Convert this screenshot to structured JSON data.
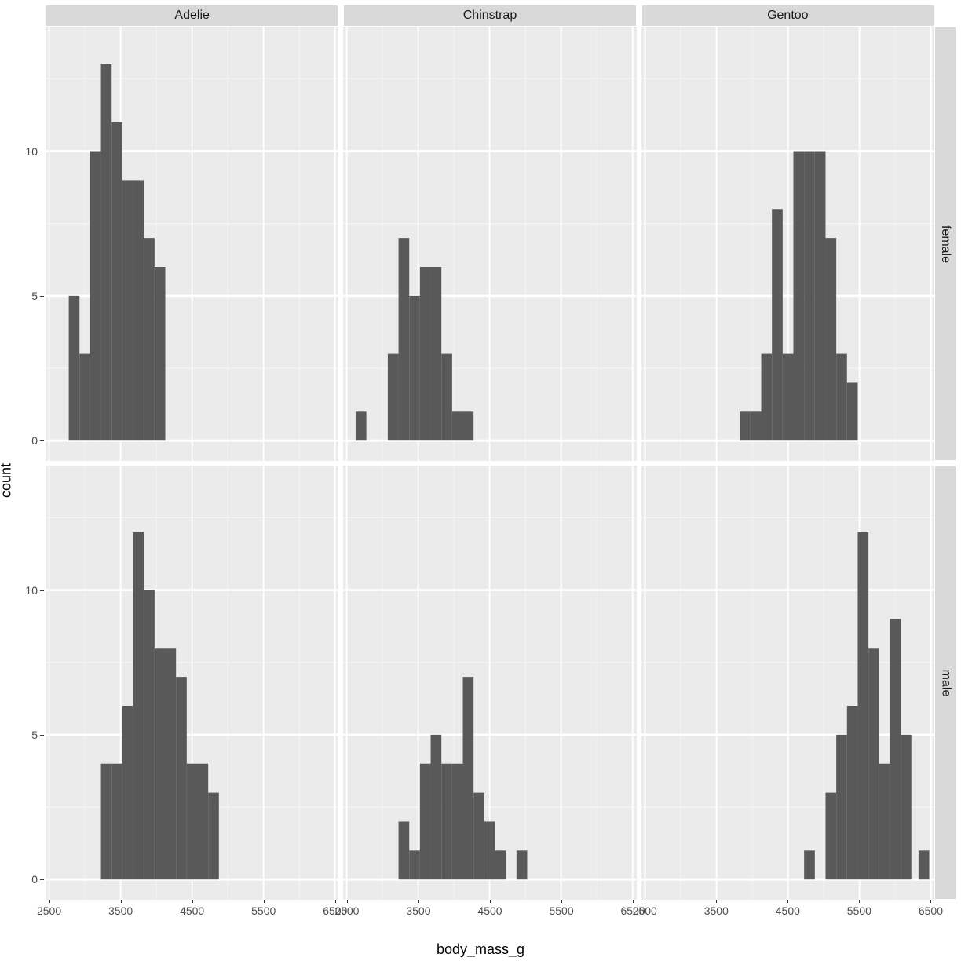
{
  "chart": {
    "type": "faceted-histogram",
    "xlabel": "body_mass_g",
    "ylabel": "count",
    "background_color": "#ffffff",
    "panel_background": "#ebebeb",
    "strip_background": "#d9d9d9",
    "bar_fill": "#595959",
    "major_grid_color": "#ffffff",
    "minor_grid_color": "#f5f5f5",
    "strip_text_color": "#1a1a1a",
    "tick_text_color": "#4d4d4d",
    "axis_title_fontsize": 18,
    "strip_fontsize": 16,
    "tick_fontsize": 14,
    "col_facets": [
      "Adelie",
      "Chinstrap",
      "Gentoo"
    ],
    "row_facets": [
      "female",
      "male"
    ],
    "xlim": [
      2450,
      6550
    ],
    "x_major_ticks": [
      2500,
      3500,
      4500,
      5500,
      6500
    ],
    "x_minor_ticks": [
      3000,
      4000,
      5000,
      6000
    ],
    "ylim": [
      -0.7,
      14.3
    ],
    "y_major_ticks": [
      0,
      5,
      10
    ],
    "y_minor_ticks": [
      2.5,
      7.5,
      12.5
    ],
    "bin_width": 150,
    "panels": {
      "Adelie_female": {
        "bins": [
          {
            "x": 2850,
            "count": 5
          },
          {
            "x": 3000,
            "count": 3
          },
          {
            "x": 3150,
            "count": 10
          },
          {
            "x": 3300,
            "count": 13
          },
          {
            "x": 3450,
            "count": 11
          },
          {
            "x": 3600,
            "count": 9
          },
          {
            "x": 3750,
            "count": 9
          },
          {
            "x": 3900,
            "count": 7
          },
          {
            "x": 4050,
            "count": 6
          }
        ]
      },
      "Chinstrap_female": {
        "bins": [
          {
            "x": 2700,
            "count": 1
          },
          {
            "x": 3150,
            "count": 3
          },
          {
            "x": 3300,
            "count": 7
          },
          {
            "x": 3450,
            "count": 5
          },
          {
            "x": 3600,
            "count": 6
          },
          {
            "x": 3750,
            "count": 6
          },
          {
            "x": 3900,
            "count": 3
          },
          {
            "x": 4050,
            "count": 1
          },
          {
            "x": 4200,
            "count": 1
          }
        ]
      },
      "Gentoo_female": {
        "bins": [
          {
            "x": 3900,
            "count": 1
          },
          {
            "x": 4050,
            "count": 1
          },
          {
            "x": 4200,
            "count": 3
          },
          {
            "x": 4350,
            "count": 8
          },
          {
            "x": 4500,
            "count": 3
          },
          {
            "x": 4650,
            "count": 10
          },
          {
            "x": 4800,
            "count": 10
          },
          {
            "x": 4950,
            "count": 10
          },
          {
            "x": 5100,
            "count": 7
          },
          {
            "x": 5250,
            "count": 3
          },
          {
            "x": 5400,
            "count": 2
          }
        ]
      },
      "Adelie_male": {
        "bins": [
          {
            "x": 3300,
            "count": 4
          },
          {
            "x": 3450,
            "count": 4
          },
          {
            "x": 3600,
            "count": 6
          },
          {
            "x": 3750,
            "count": 12
          },
          {
            "x": 3900,
            "count": 10
          },
          {
            "x": 4050,
            "count": 8
          },
          {
            "x": 4200,
            "count": 8
          },
          {
            "x": 4350,
            "count": 7
          },
          {
            "x": 4500,
            "count": 4
          },
          {
            "x": 4650,
            "count": 4
          },
          {
            "x": 4800,
            "count": 3
          }
        ]
      },
      "Chinstrap_male": {
        "bins": [
          {
            "x": 3300,
            "count": 2
          },
          {
            "x": 3450,
            "count": 1
          },
          {
            "x": 3600,
            "count": 4
          },
          {
            "x": 3750,
            "count": 5
          },
          {
            "x": 3900,
            "count": 4
          },
          {
            "x": 4050,
            "count": 4
          },
          {
            "x": 4200,
            "count": 7
          },
          {
            "x": 4350,
            "count": 3
          },
          {
            "x": 4500,
            "count": 2
          },
          {
            "x": 4650,
            "count": 1
          },
          {
            "x": 4950,
            "count": 1
          }
        ]
      },
      "Gentoo_male": {
        "bins": [
          {
            "x": 4800,
            "count": 1
          },
          {
            "x": 5100,
            "count": 3
          },
          {
            "x": 5250,
            "count": 5
          },
          {
            "x": 5400,
            "count": 6
          },
          {
            "x": 5550,
            "count": 12
          },
          {
            "x": 5700,
            "count": 8
          },
          {
            "x": 5850,
            "count": 4
          },
          {
            "x": 6000,
            "count": 9
          },
          {
            "x": 6150,
            "count": 5
          },
          {
            "x": 6400,
            "count": 1
          }
        ]
      }
    }
  }
}
